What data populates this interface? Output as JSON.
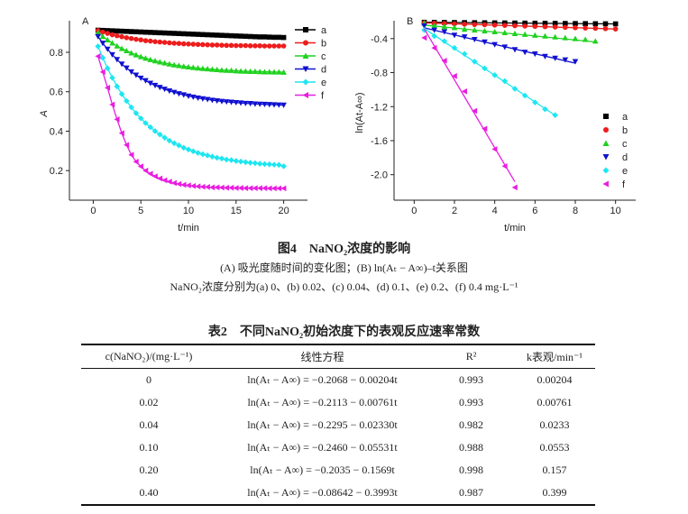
{
  "chart_data": [
    {
      "type": "line",
      "panel_label": "A",
      "xlabel": "t/min",
      "ylabel": "A",
      "xlim": [
        -2.5,
        22.5
      ],
      "ylim": [
        0.05,
        0.96
      ],
      "xticks": [
        0,
        5,
        10,
        15,
        20
      ],
      "yticks": [
        0.2,
        0.4,
        0.6,
        0.8
      ],
      "legend": "top-right",
      "grid": false,
      "x": [
        0.5,
        1,
        1.5,
        2,
        2.5,
        3,
        3.5,
        4,
        4.5,
        5,
        5.5,
        6,
        6.5,
        7,
        7.5,
        8,
        8.5,
        9,
        9.5,
        10,
        10.5,
        11,
        11.5,
        12,
        12.5,
        13,
        13.5,
        14,
        14.5,
        15,
        15.5,
        16,
        16.5,
        17,
        17.5,
        18,
        18.5,
        19,
        19.5,
        20
      ],
      "series": [
        {
          "name": "a",
          "color": "#000000",
          "marker": "square",
          "values": [
            0.912,
            0.911,
            0.91,
            0.909,
            0.908,
            0.907,
            0.906,
            0.905,
            0.904,
            0.903,
            0.902,
            0.901,
            0.9,
            0.899,
            0.898,
            0.897,
            0.896,
            0.895,
            0.894,
            0.893,
            0.892,
            0.891,
            0.89,
            0.889,
            0.888,
            0.887,
            0.886,
            0.885,
            0.884,
            0.883,
            0.882,
            0.881,
            0.88,
            0.879,
            0.878,
            0.878,
            0.877,
            0.876,
            0.876,
            0.875
          ]
        },
        {
          "name": "b",
          "color": "#ee1c1c",
          "marker": "circle",
          "values": [
            0.91,
            0.902,
            0.896,
            0.889,
            0.884,
            0.879,
            0.874,
            0.87,
            0.866,
            0.863,
            0.859,
            0.857,
            0.854,
            0.852,
            0.85,
            0.848,
            0.846,
            0.845,
            0.843,
            0.842,
            0.841,
            0.84,
            0.839,
            0.838,
            0.837,
            0.837,
            0.836,
            0.835,
            0.835,
            0.834,
            0.834,
            0.834,
            0.833,
            0.833,
            0.833,
            0.832,
            0.832,
            0.832,
            0.832,
            0.832
          ]
        },
        {
          "name": "c",
          "color": "#1ed21e",
          "marker": "triangle-up",
          "values": [
            0.9,
            0.88,
            0.863,
            0.847,
            0.832,
            0.819,
            0.808,
            0.797,
            0.787,
            0.778,
            0.77,
            0.763,
            0.757,
            0.751,
            0.746,
            0.741,
            0.736,
            0.733,
            0.729,
            0.726,
            0.723,
            0.72,
            0.718,
            0.716,
            0.714,
            0.712,
            0.71,
            0.709,
            0.708,
            0.706,
            0.705,
            0.704,
            0.703,
            0.703,
            0.702,
            0.701,
            0.701,
            0.7,
            0.7,
            0.699
          ]
        },
        {
          "name": "d",
          "color": "#1010d0",
          "marker": "triangle-down",
          "values": [
            0.88,
            0.846,
            0.816,
            0.788,
            0.763,
            0.74,
            0.72,
            0.701,
            0.684,
            0.669,
            0.656,
            0.643,
            0.632,
            0.622,
            0.613,
            0.604,
            0.597,
            0.59,
            0.584,
            0.578,
            0.573,
            0.568,
            0.564,
            0.561,
            0.557,
            0.554,
            0.551,
            0.549,
            0.547,
            0.545,
            0.543,
            0.541,
            0.54,
            0.538,
            0.537,
            0.536,
            0.535,
            0.534,
            0.533,
            0.532
          ]
        },
        {
          "name": "e",
          "color": "#1ee6f0",
          "marker": "diamond",
          "values": [
            0.83,
            0.772,
            0.719,
            0.671,
            0.627,
            0.588,
            0.553,
            0.521,
            0.491,
            0.465,
            0.441,
            0.42,
            0.4,
            0.383,
            0.367,
            0.352,
            0.339,
            0.328,
            0.316,
            0.307,
            0.298,
            0.29,
            0.283,
            0.277,
            0.271,
            0.265,
            0.261,
            0.256,
            0.253,
            0.249,
            0.246,
            0.243,
            0.24,
            0.238,
            0.235,
            0.233,
            0.232,
            0.23,
            0.229,
            0.222
          ]
        },
        {
          "name": "f",
          "color": "#e81ee0",
          "marker": "triangle-left",
          "values": [
            0.78,
            0.7,
            0.62,
            0.535,
            0.46,
            0.39,
            0.33,
            0.28,
            0.245,
            0.221,
            0.2,
            0.184,
            0.171,
            0.16,
            0.151,
            0.144,
            0.137,
            0.132,
            0.128,
            0.125,
            0.122,
            0.12,
            0.118,
            0.117,
            0.115,
            0.115,
            0.114,
            0.113,
            0.113,
            0.112,
            0.112,
            0.111,
            0.111,
            0.111,
            0.111,
            0.111,
            0.11,
            0.11,
            0.11,
            0.11
          ]
        }
      ]
    },
    {
      "type": "scatter",
      "panel_label": "B",
      "xlabel": "t/min",
      "ylabel": "ln(At-A∞)",
      "xlim": [
        -1,
        11
      ],
      "ylim": [
        -2.3,
        -0.19
      ],
      "xticks": [
        0,
        2,
        4,
        6,
        8,
        10
      ],
      "yticks": [
        -0.4,
        -0.8,
        -1.2,
        -1.6,
        -2.0
      ],
      "legend": "right",
      "grid": false,
      "series": [
        {
          "name": "a",
          "color": "#000000",
          "marker": "square",
          "fit": {
            "intercept": -0.2068,
            "slope": -0.00204
          },
          "x_start": 0.5,
          "x_step": 0.5,
          "values": [
            -0.208,
            -0.209,
            -0.21,
            -0.211,
            -0.212,
            -0.213,
            -0.214,
            -0.215,
            -0.216,
            -0.217,
            -0.218,
            -0.219,
            -0.22,
            -0.221,
            -0.222,
            -0.223,
            -0.224,
            -0.225,
            -0.226,
            -0.227
          ]
        },
        {
          "name": "b",
          "color": "#ee1c1c",
          "marker": "circle",
          "fit": {
            "intercept": -0.2113,
            "slope": -0.00761
          },
          "x_start": 0.5,
          "x_step": 0.5,
          "values": [
            -0.215,
            -0.218,
            -0.222,
            -0.226,
            -0.23,
            -0.234,
            -0.237,
            -0.241,
            -0.245,
            -0.249,
            -0.253,
            -0.256,
            -0.26,
            -0.264,
            -0.268,
            -0.272,
            -0.276,
            -0.279,
            -0.283,
            -0.287
          ]
        },
        {
          "name": "c",
          "color": "#1ed21e",
          "marker": "triangle-up",
          "fit": {
            "intercept": -0.2295,
            "slope": -0.0233
          },
          "x_start": 0.5,
          "x_step": 0.5,
          "values": [
            -0.22,
            -0.25,
            -0.26,
            -0.27,
            -0.29,
            -0.3,
            -0.31,
            -0.32,
            -0.33,
            -0.34,
            -0.35,
            -0.36,
            -0.37,
            -0.38,
            -0.39,
            -0.4,
            -0.41,
            -0.43
          ]
        },
        {
          "name": "d",
          "color": "#1010d0",
          "marker": "triangle-down",
          "fit": {
            "intercept": -0.246,
            "slope": -0.05531
          },
          "x_start": 0.5,
          "x_step": 0.5,
          "values": [
            -0.25,
            -0.3,
            -0.32,
            -0.36,
            -0.38,
            -0.41,
            -0.44,
            -0.47,
            -0.5,
            -0.53,
            -0.56,
            -0.58,
            -0.61,
            -0.63,
            -0.65,
            -0.67
          ]
        },
        {
          "name": "e",
          "color": "#1ee6f0",
          "marker": "diamond",
          "fit": {
            "intercept": -0.2035,
            "slope": -0.1569
          },
          "x_start": 0.5,
          "x_step": 0.5,
          "values": [
            -0.3,
            -0.37,
            -0.43,
            -0.51,
            -0.58,
            -0.67,
            -0.75,
            -0.83,
            -0.9,
            -0.99,
            -1.07,
            -1.15,
            -1.23,
            -1.3
          ]
        },
        {
          "name": "f",
          "color": "#e81ee0",
          "marker": "triangle-left",
          "fit": {
            "intercept": -0.08642,
            "slope": -0.3993
          },
          "x_start": 0.5,
          "x_step": 0.5,
          "values": [
            -0.39,
            -0.51,
            -0.66,
            -0.84,
            -1.02,
            -1.25,
            -1.46,
            -1.7,
            -1.9,
            -2.15
          ]
        }
      ]
    }
  ],
  "figure": {
    "title": "图4　NaNO₂浓度的影响",
    "subtitle1": "(A) 吸光度随时间的变化图；(B) ln(Aₜ − A∞)–t关系图",
    "subtitle2": "NaNO₂浓度分别为(a) 0、(b) 0.02、(c) 0.04、(d) 0.1、(e) 0.2、(f) 0.4 mg·L⁻¹"
  },
  "table": {
    "title": "表2　不同NaNO₂初始浓度下的表观反应速率常数",
    "headers": [
      "c(NaNO₂)/(mg·L⁻¹)",
      "线性方程",
      "R²",
      "k表观/min⁻¹"
    ],
    "rows": [
      [
        "0",
        "ln(Aₜ − A∞) = −0.2068 − 0.00204t",
        "0.993",
        "0.00204"
      ],
      [
        "0.02",
        "ln(Aₜ − A∞) = −0.2113 − 0.00761t",
        "0.993",
        "0.00761"
      ],
      [
        "0.04",
        "ln(Aₜ − A∞) = −0.2295 − 0.02330t",
        "0.982",
        "0.0233"
      ],
      [
        "0.10",
        "ln(Aₜ − A∞) = −0.2460 − 0.05531t",
        "0.988",
        "0.0553"
      ],
      [
        "0.20",
        "ln(Aₜ − A∞) = −0.2035 − 0.1569t",
        "0.998",
        "0.157"
      ],
      [
        "0.40",
        "ln(Aₜ − A∞) = −0.08642 − 0.3993t",
        "0.987",
        "0.399"
      ]
    ]
  }
}
